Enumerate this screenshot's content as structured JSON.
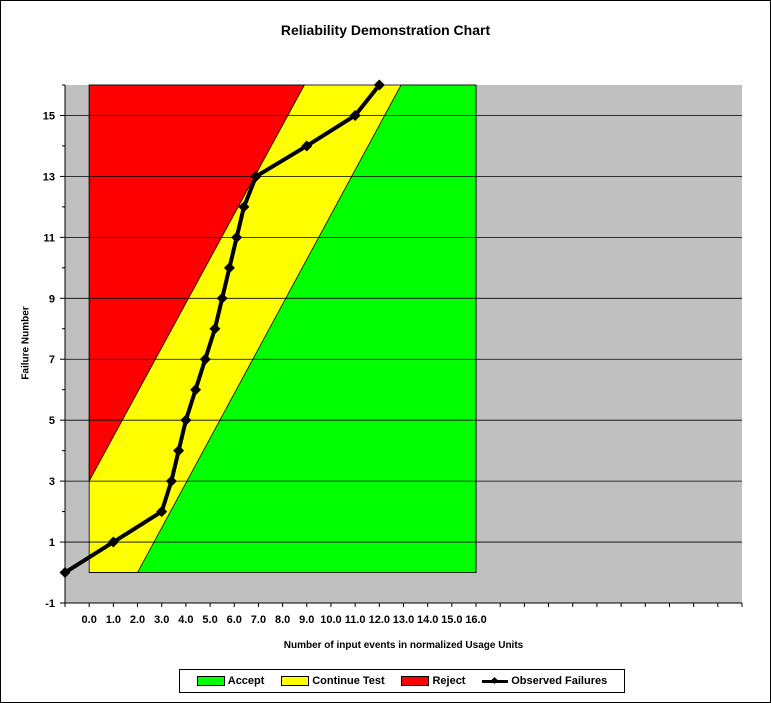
{
  "chart_data": {
    "type": "line",
    "title": "Reliability Demonstration Chart",
    "xlabel": "Number of input events in normalized Usage Units",
    "ylabel": "Failure Number",
    "xlim": [
      -1,
      27
    ],
    "ylim": [
      -1,
      16
    ],
    "x_ticks": [
      0,
      1,
      2,
      3,
      4,
      5,
      6,
      7,
      8,
      9,
      10,
      11,
      12,
      13,
      14,
      15,
      16
    ],
    "x_tick_labels": [
      "0.0",
      "1.0",
      "2.0",
      "3.0",
      "4.0",
      "5.0",
      "6.0",
      "7.0",
      "8.0",
      "9.0",
      "10.0",
      "11.0",
      "12.0",
      "13.0",
      "14.0",
      "15.0",
      "16.0"
    ],
    "y_ticks": [
      -1,
      1,
      3,
      5,
      7,
      9,
      11,
      13,
      15
    ],
    "y_tick_labels": [
      "-1",
      "1",
      "3",
      "5",
      "7",
      "9",
      "11",
      "13",
      "15"
    ],
    "regions": {
      "accept": {
        "name": "Accept",
        "color": "#00ff00",
        "boundary": [
          [
            0,
            0
          ],
          [
            2,
            0
          ],
          [
            12.9,
            16
          ],
          [
            16,
            16
          ],
          [
            16,
            0
          ]
        ]
      },
      "continue": {
        "name": "Continue Test",
        "color": "#ffff00"
      },
      "reject": {
        "name": "Reject",
        "color": "#ff0000",
        "boundary": [
          [
            0,
            3
          ],
          [
            8.9,
            16
          ],
          [
            0,
            16
          ]
        ]
      }
    },
    "series": [
      {
        "name": "Observed Failures",
        "color": "#000000",
        "x": [
          -1,
          1.0,
          3.0,
          3.4,
          3.7,
          4.0,
          4.4,
          4.8,
          5.2,
          5.5,
          5.8,
          6.1,
          6.4,
          6.9,
          9.0,
          11.0,
          12.0
        ],
        "y": [
          0,
          1,
          2,
          3,
          4,
          5,
          6,
          7,
          8,
          9,
          10,
          11,
          12,
          13,
          14,
          15,
          16
        ]
      }
    ],
    "grid": "horizontal",
    "legend_position": "bottom"
  },
  "legend": [
    {
      "label": "Accept",
      "color": "#00ff00"
    },
    {
      "label": "Continue Test",
      "color": "#ffff00"
    },
    {
      "label": "Reject",
      "color": "#ff0000"
    },
    {
      "label": "Observed Failures",
      "color": "#000000"
    }
  ]
}
